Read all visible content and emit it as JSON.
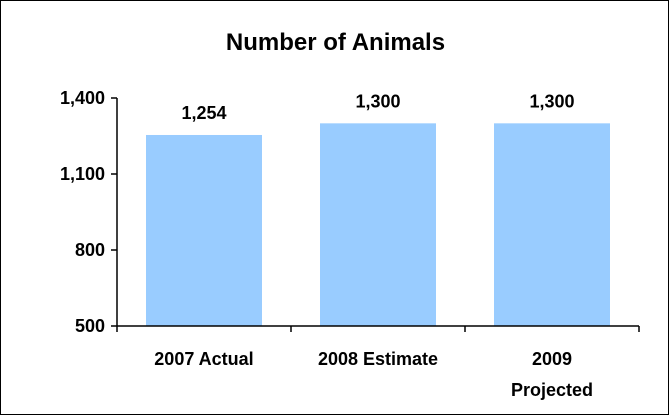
{
  "chart_data": {
    "type": "bar",
    "title": "Number of Animals",
    "xlabel": "",
    "ylabel": "",
    "categories": [
      [
        "2007 Actual"
      ],
      [
        "2008 Estimate"
      ],
      [
        "2009",
        "Projected"
      ]
    ],
    "values": [
      1254,
      1300,
      1300
    ],
    "data_labels": [
      "1,254",
      "1,300",
      "1,300"
    ],
    "ylim": [
      500,
      1400
    ],
    "yticks": [
      500,
      800,
      1100,
      1400
    ],
    "ytick_labels": [
      "500",
      "800",
      "1,100",
      "1,400"
    ],
    "grid": false,
    "legend": "none",
    "colors": {
      "bar": "#99CCFF",
      "axis": "#000000",
      "border": "#000000",
      "background": "#FFFFFF"
    }
  }
}
